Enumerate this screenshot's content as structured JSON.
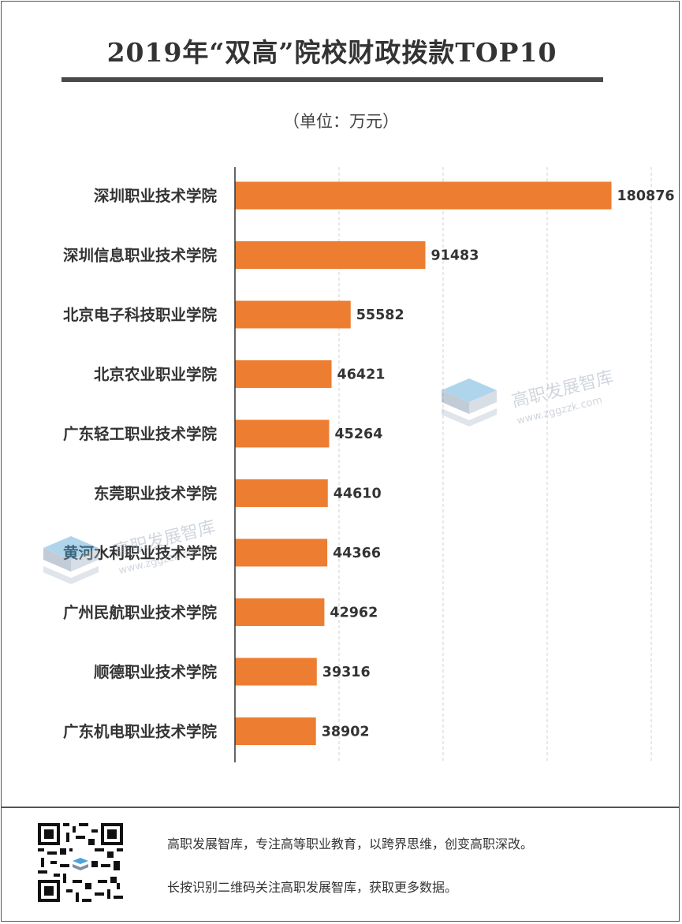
{
  "header": {
    "title": "2019年“双高”院校财政拨款TOP10",
    "unit": "（单位：万元）"
  },
  "chart_data": {
    "type": "bar",
    "orientation": "horizontal",
    "title": "2019年“双高”院校财政拨款TOP10",
    "subtitle": "（单位：万元）",
    "categories": [
      "深圳职业技术学院",
      "深圳信息职业技术学院",
      "北京电子科技职业学院",
      "北京农业职业学院",
      "广东轻工职业技术学院",
      "东莞职业技术学院",
      "黄河水利职业技术学院",
      "广州民航职业技术学院",
      "顺德职业技术学院",
      "广东机电职业技术学院"
    ],
    "values": [
      180876,
      91483,
      55582,
      46421,
      45264,
      44610,
      44366,
      42962,
      39316,
      38902
    ],
    "xlim": [
      0,
      200000
    ],
    "gridlines": "vertical dashed",
    "bar_color": "#ed7d31",
    "data_labels": true
  },
  "watermark": {
    "name": "高职发展智库",
    "url": "www.zggzzk.com"
  },
  "footer": {
    "line1": "高职发展智库，专注高等职业教育，以跨界思维，创变高职深改。",
    "line2": "长按识别二维码关注高职发展智库，获取更多数据。"
  }
}
